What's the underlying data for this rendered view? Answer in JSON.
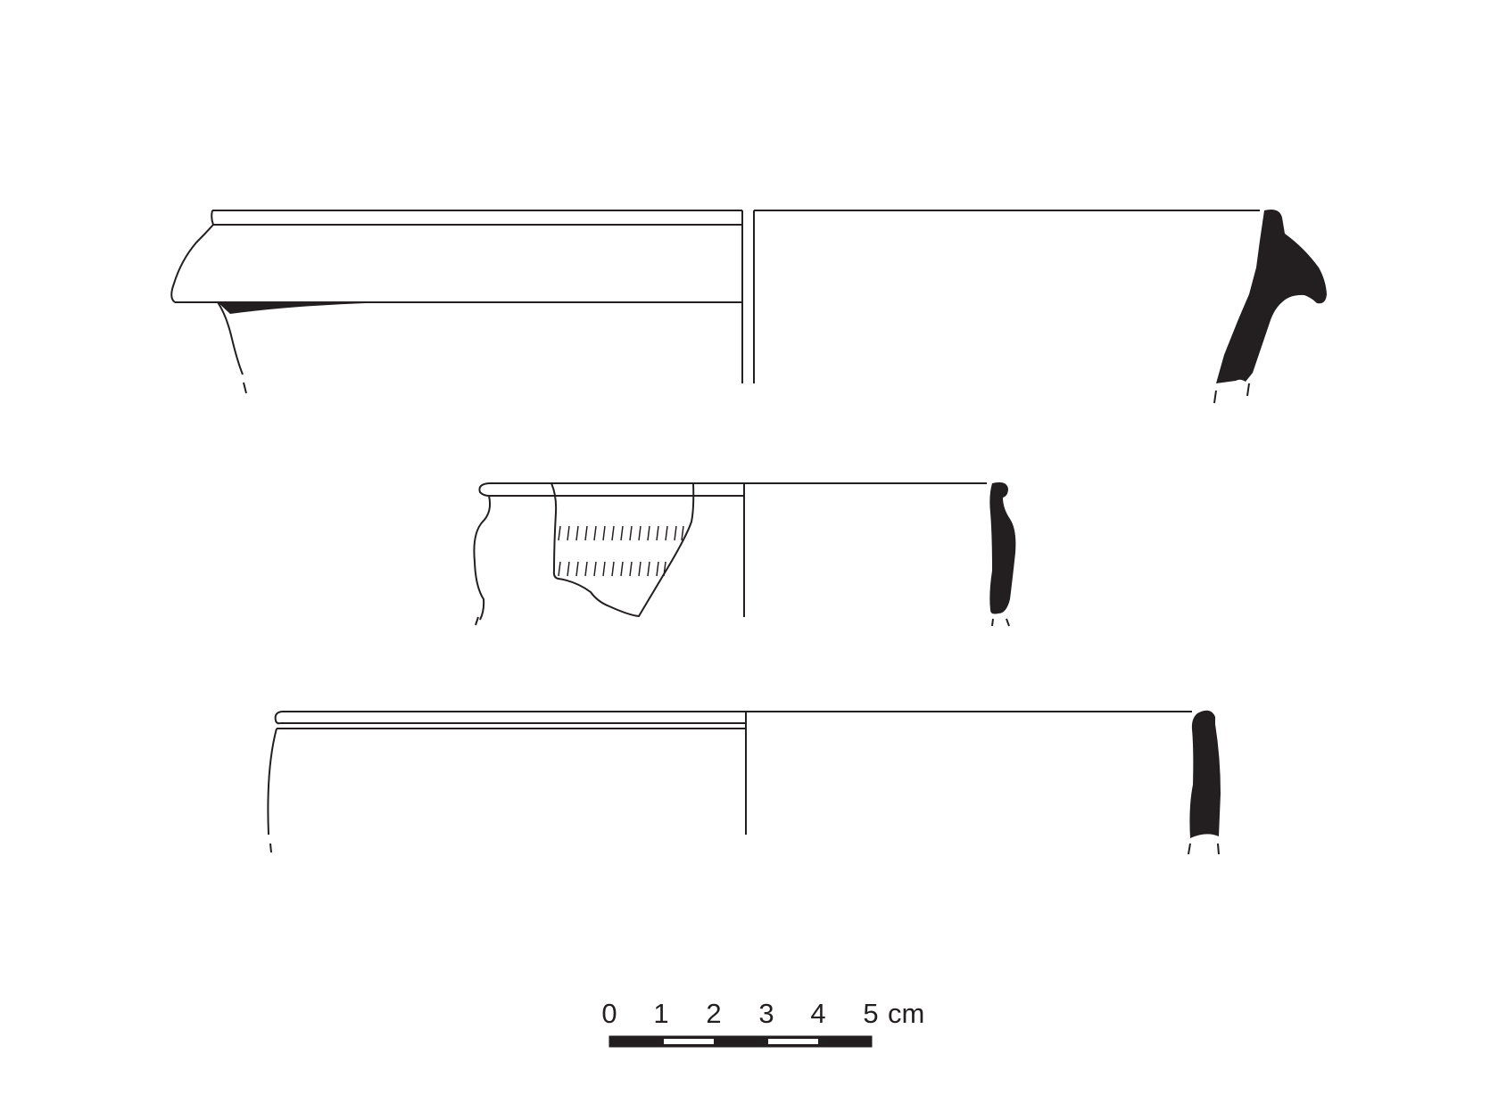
{
  "colors": {
    "ink": "#231f20",
    "paper": "#ffffff"
  },
  "scale_bar": {
    "tick_labels": [
      "0",
      "1",
      "2",
      "3",
      "4",
      "5"
    ],
    "unit": "cm"
  }
}
